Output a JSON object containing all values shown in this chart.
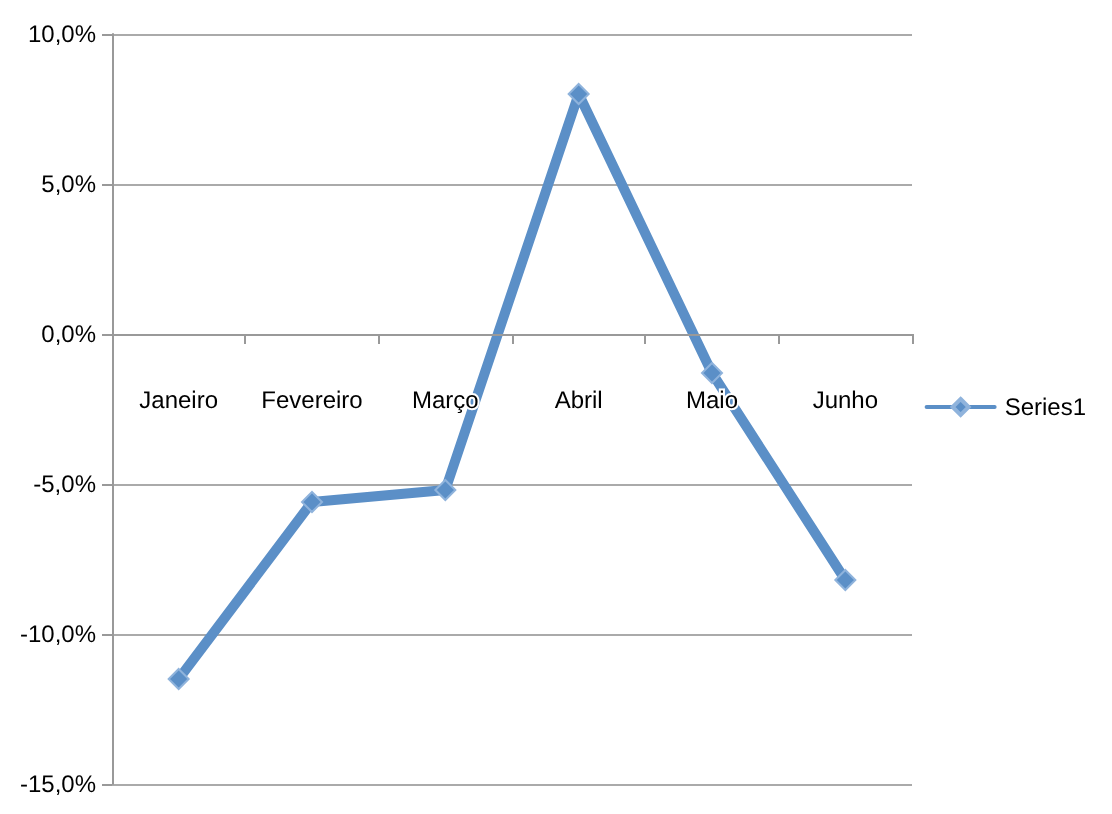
{
  "chart_data": {
    "type": "line",
    "categories": [
      "Janeiro",
      "Fevereiro",
      "Março",
      "Abril",
      "Maio",
      "Junho"
    ],
    "series": [
      {
        "name": "Series1",
        "color": "#5b8fc7",
        "values": [
          -11.5,
          -5.6,
          -5.2,
          8.0,
          -1.3,
          -8.2
        ]
      }
    ],
    "ylim": [
      -15,
      10
    ],
    "yticks": [
      {
        "value": -15,
        "label": "-15,0%"
      },
      {
        "value": -10,
        "label": "-10,0%"
      },
      {
        "value": -5,
        "label": "-5,0%"
      },
      {
        "value": 0,
        "label": "0,0%"
      },
      {
        "value": 5,
        "label": "5,0%"
      },
      {
        "value": 10,
        "label": "10,0%"
      }
    ],
    "grid": "y",
    "legend": "right",
    "marker": "diamond",
    "line_style": "solid"
  }
}
